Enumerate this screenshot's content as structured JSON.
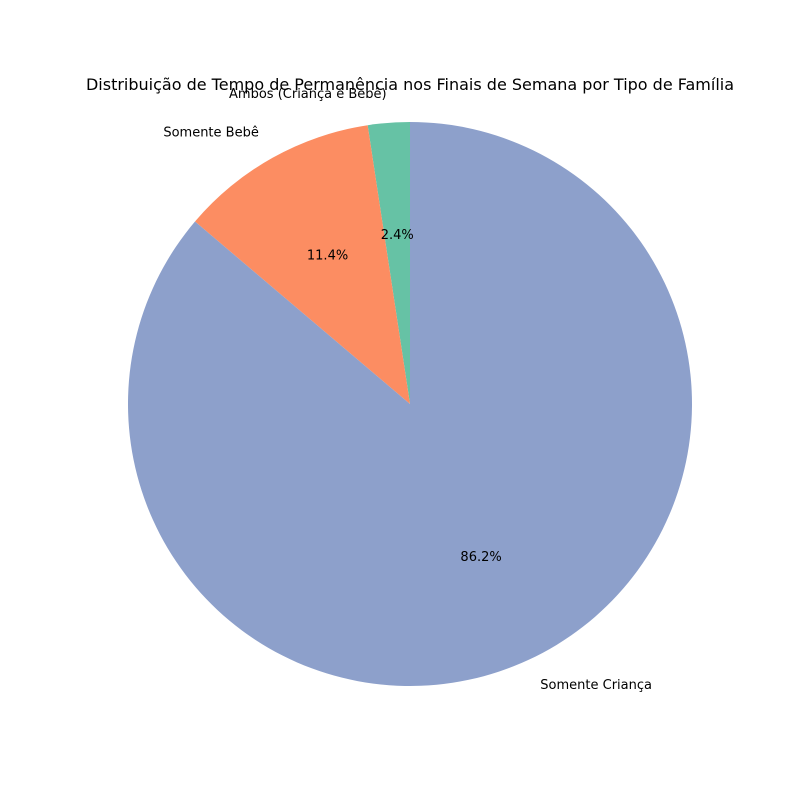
{
  "chart_data": {
    "type": "pie",
    "title": "Distribuição de Tempo de Permanência nos Finais de Semana por Tipo de Família",
    "legend": "none",
    "slices": [
      {
        "label": "Ambos (Criança e Bebê)",
        "value": 2.4,
        "pct_label": "2.4%",
        "color": "#66c2a5"
      },
      {
        "label": "Somente Bebê",
        "value": 11.4,
        "pct_label": "11.4%",
        "color": "#fc8d62"
      },
      {
        "label": "Somente Criança",
        "value": 86.2,
        "pct_label": "86.2%",
        "color": "#8da0cb"
      }
    ]
  }
}
